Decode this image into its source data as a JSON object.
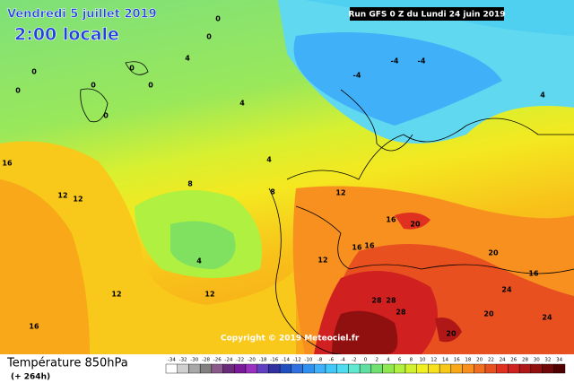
{
  "header": {
    "date": "Vendredi 5 juillet 2019",
    "time": "2:00 locale",
    "run": "Run GFS 0 Z du Lundi 24 juin 2019"
  },
  "copyright": "Copyright © 2019 Meteociel.fr",
  "footer": {
    "title": "Température 850hPa",
    "lead": "(+ 264h)"
  },
  "scale": {
    "values": [
      -34,
      -32,
      -30,
      -28,
      -26,
      -24,
      -22,
      -20,
      -18,
      -16,
      -14,
      -12,
      -10,
      -8,
      -6,
      -4,
      -2,
      0,
      2,
      4,
      6,
      8,
      10,
      12,
      14,
      16,
      18,
      20,
      22,
      24,
      26,
      28,
      30,
      32,
      34
    ],
    "colors": [
      "#ffffff",
      "#d0d0d0",
      "#a8a8a8",
      "#808080",
      "#8a5a8a",
      "#6a2a7a",
      "#7a1a9a",
      "#9a30c0",
      "#6040c0",
      "#3030a0",
      "#2050c0",
      "#3070e0",
      "#3090f0",
      "#40b0f8",
      "#40c8f8",
      "#50dcf0",
      "#60e8d0",
      "#60e0a0",
      "#70e070",
      "#90e850",
      "#b0f040",
      "#d0f030",
      "#f0f020",
      "#f8e020",
      "#f8c818",
      "#f8a818",
      "#f89020",
      "#f07020",
      "#e85020",
      "#e03020",
      "#d02020",
      "#b01818",
      "#901010",
      "#700808",
      "#500000"
    ]
  },
  "contour_labels": [
    "0",
    "0",
    "0",
    "0",
    "0",
    "0",
    "0",
    "0",
    "4",
    "4",
    "4",
    "4",
    "-4",
    "-4",
    "-4",
    "4",
    "8",
    "8",
    "12",
    "12",
    "12",
    "12",
    "12",
    "12",
    "16",
    "16",
    "16",
    "16",
    "16",
    "16",
    "20",
    "20",
    "20",
    "20",
    "24",
    "24",
    "28",
    "28",
    "28"
  ]
}
